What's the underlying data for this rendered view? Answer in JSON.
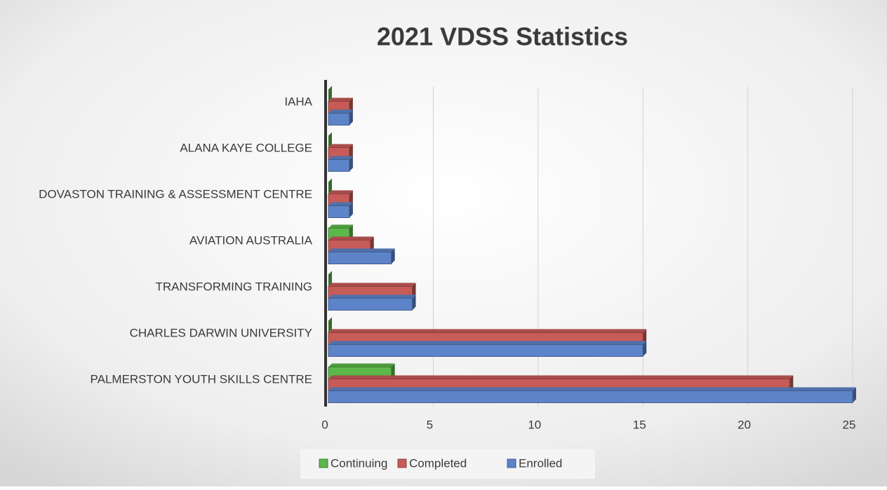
{
  "chart_data": {
    "type": "bar",
    "orientation": "horizontal",
    "title": "2021 VDSS Statistics",
    "categories": [
      "IAHA",
      "ALANA KAYE COLLEGE",
      "DOVASTON TRAINING & ASSESSMENT CENTRE",
      "AVIATION AUSTRALIA",
      "TRANSFORMING TRAINING",
      "CHARLES DARWIN UNIVERSITY",
      "PALMERSTON YOUTH SKILLS CENTRE"
    ],
    "series": [
      {
        "name": "Continuing",
        "color": "#5cb84a",
        "values": [
          0,
          0,
          0,
          1,
          0,
          0,
          3
        ]
      },
      {
        "name": "Completed",
        "color": "#c65b58",
        "values": [
          1,
          1,
          1,
          2,
          4,
          15,
          22
        ]
      },
      {
        "name": "Enrolled",
        "color": "#5d84c9",
        "values": [
          1,
          1,
          1,
          3,
          4,
          15,
          25
        ]
      }
    ],
    "xlim": [
      0,
      25
    ],
    "xticks": [
      0,
      5,
      10,
      15,
      20,
      25
    ],
    "grid": true,
    "legend": "bottom"
  }
}
